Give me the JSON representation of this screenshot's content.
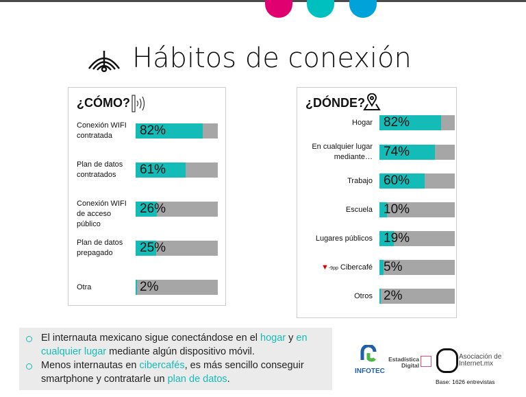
{
  "title": "Hábitos de conexión",
  "como": {
    "heading": "¿CÓMO?",
    "items": [
      {
        "label": "Conexión WIFI contratada",
        "value": 82,
        "text": "82%"
      },
      {
        "label": "Plan de datos contratados",
        "value": 61,
        "text": "61%"
      },
      {
        "label": "Conexión WIFI de acceso público",
        "value": 26,
        "text": "26%"
      },
      {
        "label": "Plan de datos prepagado",
        "value": 25,
        "text": "25%"
      },
      {
        "label": "Otra",
        "value": 2,
        "text": "2%"
      }
    ]
  },
  "donde": {
    "heading": "¿DÓNDE?",
    "items": [
      {
        "label": "Hogar",
        "value": 82,
        "text": "82%"
      },
      {
        "label": "En cualquier lugar mediante…",
        "value": 74,
        "text": "74%"
      },
      {
        "label": "Trabajo",
        "value": 60,
        "text": "60%"
      },
      {
        "label": "Escuela",
        "value": 10,
        "text": "10%"
      },
      {
        "label": "Lugares públicos",
        "value": 19,
        "text": "19%"
      },
      {
        "label": "Cibercafé",
        "value": 5,
        "text": "5%",
        "change": "-9pp"
      },
      {
        "label": "Otros",
        "value": 2,
        "text": "2%"
      }
    ]
  },
  "notes": [
    {
      "parts": [
        "El internauta mexicano sigue conectándose en el ",
        "hogar",
        " y ",
        "en cualquier lugar",
        " mediante algún dispositivo móvil."
      ]
    },
    {
      "parts": [
        "Menos internautas en ",
        "cibercafés",
        ", es más sencillo conseguir smartphone y contratarle un ",
        "plan de datos",
        "."
      ]
    }
  ],
  "logos": {
    "infotec": "INFOTEC",
    "estadistica": "Estadística Digital",
    "asociacion": "Asociación de Internet.mx"
  },
  "base": "Base: 1626 entrevistas",
  "colors": {
    "teal": "#14bcb7",
    "gray": "#a6a6a6",
    "pink": "#e0006f",
    "blue": "#00a3d9",
    "down": "#e00000"
  }
}
